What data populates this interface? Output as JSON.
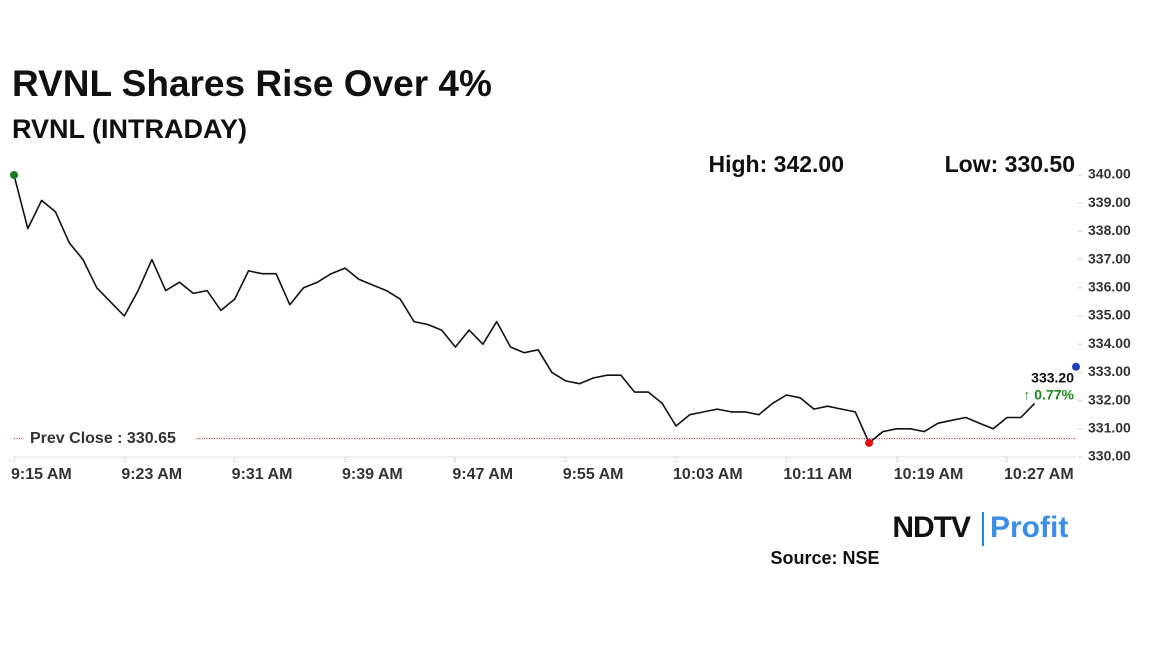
{
  "chart_data": {
    "type": "line",
    "title": "RVNL Shares Rise Over 4%",
    "subtitle": "RVNL (INTRADAY)",
    "high_label": "High: 342.00",
    "low_label": "Low: 330.50",
    "categories": [
      "9:15 AM",
      null,
      null,
      null,
      null,
      null,
      null,
      null,
      "9:23 AM",
      null,
      null,
      null,
      null,
      null,
      null,
      null,
      "9:31 AM",
      null,
      null,
      null,
      null,
      null,
      null,
      null,
      "9:39 AM",
      null,
      null,
      null,
      null,
      null,
      null,
      null,
      "9:47 AM",
      null,
      null,
      null,
      null,
      null,
      null,
      null,
      "9:55 AM",
      null,
      null,
      null,
      null,
      null,
      null,
      null,
      "10:03 AM",
      null,
      null,
      null,
      null,
      null,
      null,
      null,
      "10:11 AM",
      null,
      null,
      null,
      null,
      null,
      null,
      null,
      "10:19 AM",
      null,
      null,
      null,
      null,
      null,
      null,
      null,
      "10:27 AM",
      null,
      null,
      null,
      null,
      null
    ],
    "series": [
      {
        "name": "RVNL",
        "color": "#111111",
        "values": [
          340.0,
          338.1,
          339.1,
          338.7,
          337.6,
          337.0,
          336.0,
          335.5,
          335.0,
          335.9,
          337.0,
          335.9,
          336.2,
          335.8,
          335.9,
          335.2,
          335.6,
          336.6,
          336.5,
          336.5,
          335.4,
          336.0,
          336.2,
          336.5,
          336.7,
          336.3,
          336.1,
          335.9,
          335.6,
          334.8,
          334.7,
          334.5,
          333.9,
          334.5,
          334.0,
          334.8,
          333.9,
          333.7,
          333.8,
          333.0,
          332.7,
          332.6,
          332.8,
          332.9,
          332.9,
          332.3,
          332.3,
          331.9,
          331.1,
          331.5,
          331.6,
          331.7,
          331.6,
          331.6,
          331.5,
          331.9,
          332.2,
          332.1,
          331.7,
          331.8,
          331.7,
          331.6,
          330.5,
          330.9,
          331.0,
          331.0,
          330.9,
          331.2,
          331.3,
          331.4,
          331.2,
          331.0,
          331.4,
          331.4,
          331.9,
          null,
          null,
          333.2
        ]
      }
    ],
    "last_label": "333.20",
    "change_label": "↑ 0.77%",
    "prev_close": {
      "value": 330.65,
      "label": "Prev Close : 330.65"
    },
    "ylim": [
      330,
      340
    ],
    "yticks": [
      {
        "value": 330,
        "label": "330.00"
      },
      {
        "value": 331,
        "label": "331.00"
      },
      {
        "value": 332,
        "label": "332.00"
      },
      {
        "value": 333,
        "label": "333.00"
      },
      {
        "value": 334,
        "label": "334.00"
      },
      {
        "value": 335,
        "label": "335.00"
      },
      {
        "value": 336,
        "label": "336.00"
      },
      {
        "value": 337,
        "label": "337.00"
      },
      {
        "value": 338,
        "label": "338.00"
      },
      {
        "value": 339,
        "label": "339.00"
      },
      {
        "value": 340,
        "label": "340.00"
      }
    ],
    "logo": [
      "NDTV",
      "Profit"
    ],
    "source": "Source: NSE"
  }
}
